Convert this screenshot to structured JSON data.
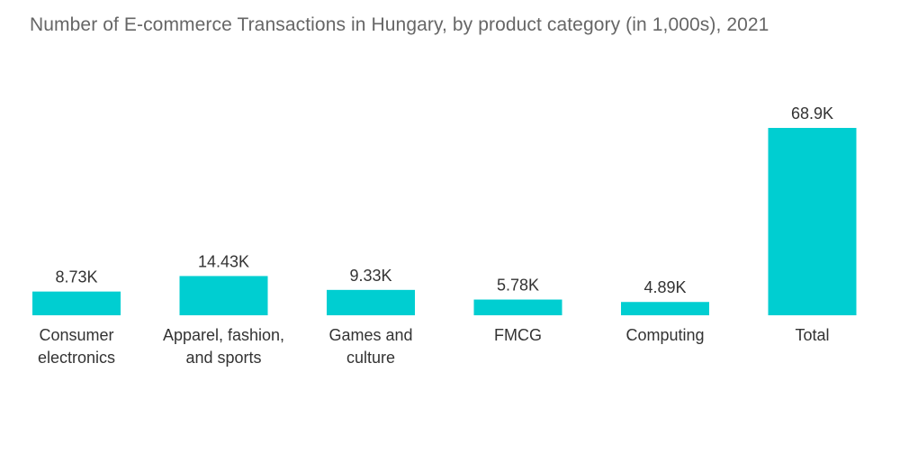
{
  "chart_data": {
    "type": "bar",
    "title": "Number of E-commerce Transactions in Hungary, by product category (in 1,000s), 2021",
    "categories": [
      [
        "Consumer",
        "electronics"
      ],
      [
        "Apparel, fashion,",
        "and sports"
      ],
      [
        "Games and",
        "culture"
      ],
      [
        "FMCG"
      ],
      [
        "Computing"
      ],
      [
        "Total"
      ]
    ],
    "values": [
      8.73,
      14.43,
      9.33,
      5.78,
      4.89,
      68.9
    ],
    "data_labels": [
      "8.73K",
      "14.43K",
      "9.33K",
      "5.78K",
      "4.89K",
      "68.9K"
    ],
    "xlabel": "",
    "ylabel": "",
    "grid": false,
    "legend": "none",
    "colors": {
      "bar": "#00CED1",
      "label": "#333333",
      "title": "#666666"
    }
  }
}
